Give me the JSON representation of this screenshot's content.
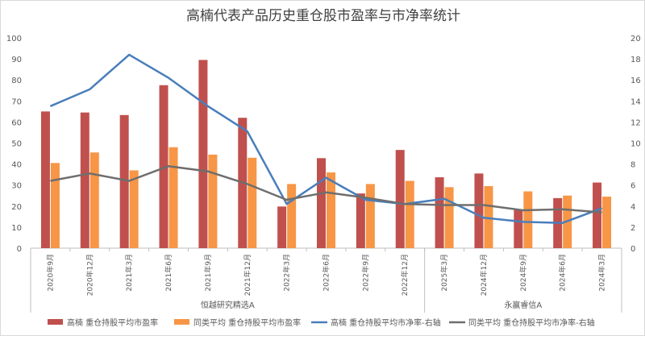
{
  "chart_data": {
    "type": "bar",
    "title": "高楠代表产品历史重仓股市盈率与市净率统计",
    "categories": [
      "2020年9月",
      "2020年12月",
      "2021年3月",
      "2021年6月",
      "2021年9月",
      "2021年12月",
      "2022年3月",
      "2022年6月",
      "2022年9月",
      "2022年12月",
      "2025年3月",
      "2024年12月",
      "2024年9月",
      "2024年6月",
      "2024年3月"
    ],
    "groups": [
      {
        "label": "恒越研究精选A",
        "count": 10
      },
      {
        "label": "永赢睿信A",
        "count": 5
      }
    ],
    "left_axis": {
      "min": 0,
      "max": 100,
      "step": 10,
      "ticks": [
        "0",
        "10",
        "20",
        "30",
        "40",
        "50",
        "60",
        "70",
        "80",
        "90",
        "100"
      ]
    },
    "right_axis": {
      "min": 0,
      "max": 20,
      "step": 2,
      "ticks": [
        "0",
        "2",
        "4",
        "6",
        "8",
        "10",
        "12",
        "14",
        "16",
        "18",
        "20"
      ]
    },
    "series": [
      {
        "name": "高楠 重仓持股平均市盈率",
        "type": "bar",
        "axis": "left",
        "color": "#c0504d",
        "values": [
          65,
          64.5,
          63.3,
          77.5,
          89.5,
          62,
          19.8,
          42.8,
          26,
          46.7,
          33.7,
          35.5,
          18.5,
          23.8,
          31.2
        ]
      },
      {
        "name": "同类平均 重仓持股平均市盈率",
        "type": "bar",
        "axis": "left",
        "color": "#f79646",
        "values": [
          40.5,
          45.5,
          37,
          48,
          44.5,
          43,
          30.5,
          36,
          30.5,
          32,
          29,
          29.5,
          27,
          25,
          24.5
        ]
      },
      {
        "name": "高楠 重仓持股平均市净率-右轴",
        "type": "line",
        "axis": "right",
        "color": "#4a7ebb",
        "values": [
          13.5,
          15.1,
          18.4,
          16.2,
          13.5,
          11.1,
          4.2,
          6.7,
          4.6,
          4.2,
          4.7,
          2.9,
          2.5,
          2.4,
          3.8
        ]
      },
      {
        "name": "同类平均 重仓持股平均市净率-右轴",
        "type": "line",
        "axis": "right",
        "color": "#6e6e6e",
        "values": [
          6.4,
          7.1,
          6.4,
          7.8,
          7.3,
          6.1,
          4.6,
          5.3,
          4.8,
          4.2,
          4.1,
          4.1,
          3.6,
          3.7,
          3.4
        ]
      }
    ],
    "legend_position": "bottom",
    "grid": false
  }
}
